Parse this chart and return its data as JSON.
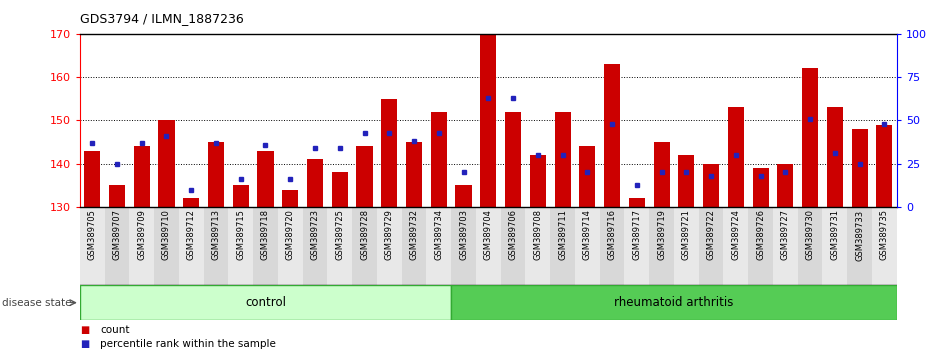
{
  "title": "GDS3794 / ILMN_1887236",
  "samples": [
    "GSM389705",
    "GSM389707",
    "GSM389709",
    "GSM389710",
    "GSM389712",
    "GSM389713",
    "GSM389715",
    "GSM389718",
    "GSM389720",
    "GSM389723",
    "GSM389725",
    "GSM389728",
    "GSM389729",
    "GSM389732",
    "GSM389734",
    "GSM389703",
    "GSM389704",
    "GSM389706",
    "GSM389708",
    "GSM389711",
    "GSM389714",
    "GSM389716",
    "GSM389717",
    "GSM389719",
    "GSM389721",
    "GSM389722",
    "GSM389724",
    "GSM389726",
    "GSM389727",
    "GSM389730",
    "GSM389731",
    "GSM389733",
    "GSM389735"
  ],
  "counts": [
    143,
    135,
    144,
    150,
    132,
    145,
    135,
    143,
    134,
    141,
    138,
    144,
    155,
    145,
    152,
    135,
    170,
    152,
    142,
    152,
    144,
    163,
    132,
    145,
    142,
    140,
    153,
    139,
    140,
    162,
    153,
    148,
    149
  ],
  "percentile_ranks": [
    37,
    25,
    37,
    41,
    10,
    37,
    16,
    36,
    16,
    34,
    34,
    43,
    43,
    38,
    43,
    20,
    63,
    63,
    30,
    30,
    20,
    48,
    13,
    20,
    20,
    18,
    30,
    18,
    20,
    51,
    31,
    25,
    48
  ],
  "ymin": 130,
  "ymax": 170,
  "yticks_left": [
    130,
    140,
    150,
    160,
    170
  ],
  "yticks_right": [
    0,
    25,
    50,
    75,
    100
  ],
  "bar_color": "#cc0000",
  "percentile_color": "#2222bb",
  "control_count": 15,
  "control_label": "control",
  "ra_label": "rheumatoid arthritis",
  "disease_state_label": "disease state",
  "control_bg": "#ccffcc",
  "ra_bg": "#55cc55",
  "legend_count_label": "count",
  "legend_percentile_label": "percentile rank within the sample",
  "bar_width": 0.65,
  "grid_lines": [
    140,
    150,
    160
  ],
  "xlabels_bg_odd": "#d8d8d8",
  "xlabels_bg_even": "#e8e8e8",
  "border_color": "#33aa33"
}
